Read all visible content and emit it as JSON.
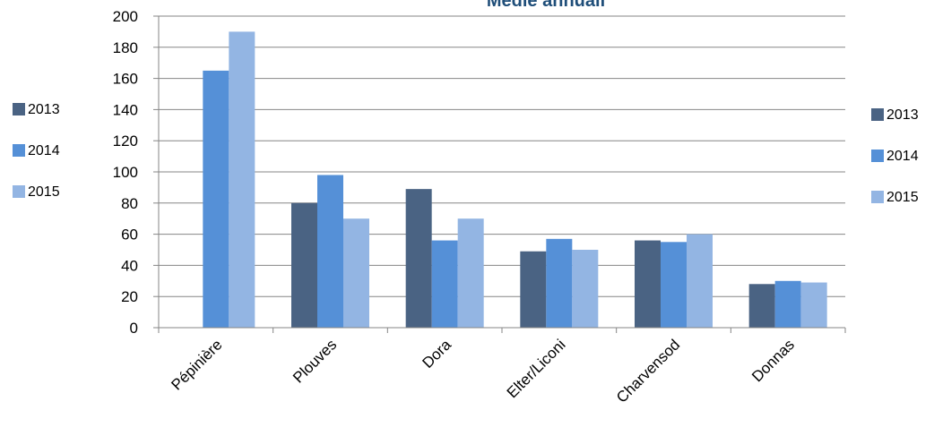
{
  "chart_data": {
    "type": "bar",
    "title": "Medie annuali",
    "categories": [
      "Pépinière",
      "Plouves",
      "Dora",
      "Elter/Liconi",
      "Charvensod",
      "Donnas"
    ],
    "series": [
      {
        "name": "2013",
        "color": "#4a6383",
        "values": [
          null,
          80,
          89,
          49,
          56,
          28
        ]
      },
      {
        "name": "2014",
        "color": "#5590d7",
        "values": [
          165,
          98,
          56,
          57,
          55,
          30
        ]
      },
      {
        "name": "2015",
        "color": "#93b5e3",
        "values": [
          190,
          70,
          70,
          50,
          60,
          29
        ]
      }
    ],
    "ylim": [
      0,
      200
    ],
    "yticks": [
      0,
      20,
      40,
      60,
      80,
      100,
      120,
      140,
      160,
      180,
      200
    ],
    "grid": true,
    "legend_placement": "left and right"
  }
}
